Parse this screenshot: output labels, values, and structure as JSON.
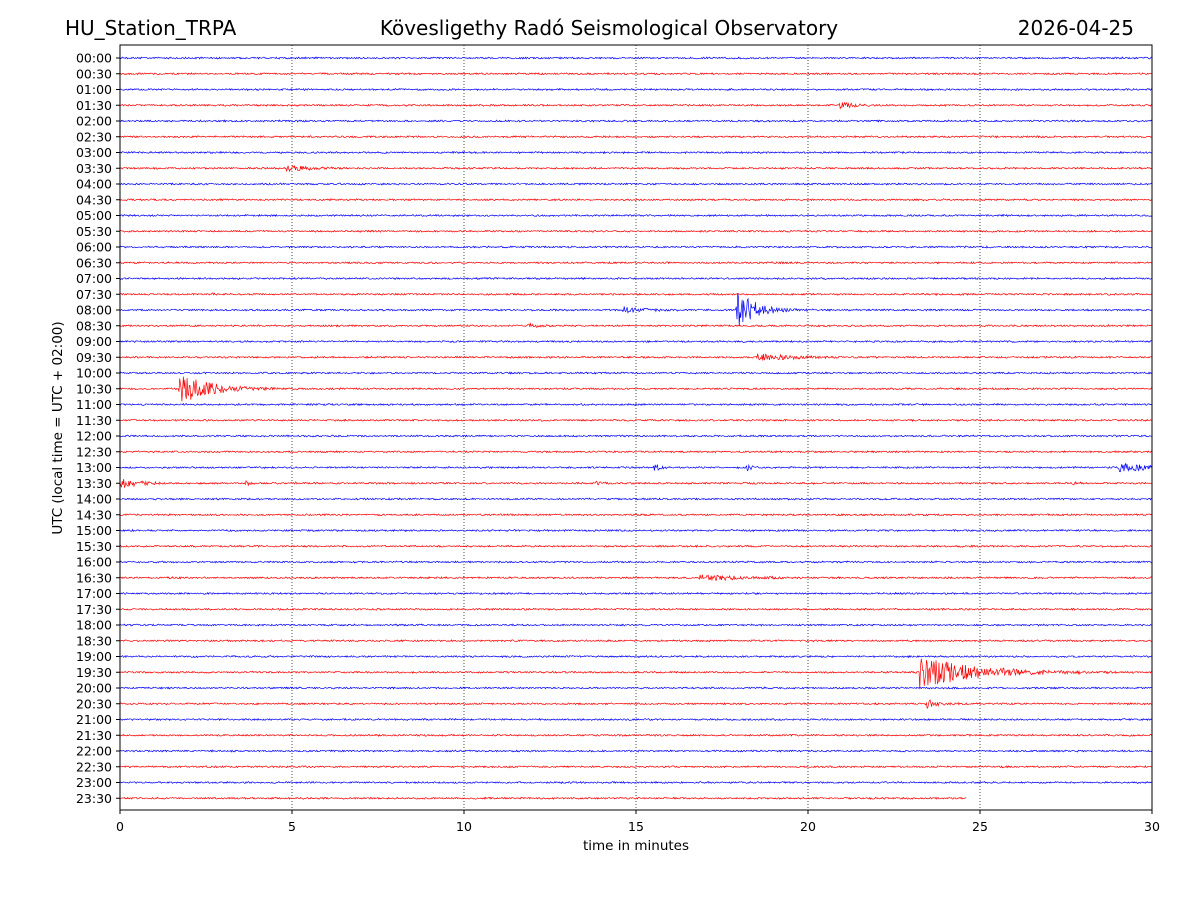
{
  "chart_data": {
    "type": "line",
    "title": {
      "left": "HU_Station_TRPA",
      "center": "Kövesligethy Radó Seismological Observatory",
      "right": "2026-04-25"
    },
    "xlabel": "time in minutes",
    "ylabel": "UTC (local time = UTC + 02:00)",
    "xlim": [
      0,
      30
    ],
    "x_ticks": [
      0,
      5,
      10,
      15,
      20,
      25,
      30
    ],
    "x_grid": true,
    "grid_style": "dotted",
    "colors": {
      "even_row": "#0000ff",
      "odd_row": "#ff0000",
      "grid": "#000000",
      "axes": "#000000"
    },
    "rows": [
      "00:00",
      "00:30",
      "01:00",
      "01:30",
      "02:00",
      "02:30",
      "03:00",
      "03:30",
      "04:00",
      "04:30",
      "05:00",
      "05:30",
      "06:00",
      "06:30",
      "07:00",
      "07:30",
      "08:00",
      "08:30",
      "09:00",
      "09:30",
      "10:00",
      "10:30",
      "11:00",
      "11:30",
      "12:00",
      "12:30",
      "13:00",
      "13:30",
      "14:00",
      "14:30",
      "15:00",
      "15:30",
      "16:00",
      "16:30",
      "17:00",
      "17:30",
      "18:00",
      "18:30",
      "19:00",
      "19:30",
      "20:00",
      "20:30",
      "21:00",
      "21:30",
      "22:00",
      "22:30",
      "23:00",
      "23:30"
    ],
    "last_row_end_minute": 24.6,
    "noise_amplitude": 1,
    "events": [
      {
        "row": "01:30",
        "start": 20.9,
        "duration": 1.2,
        "peak": 4,
        "decay": 0.3
      },
      {
        "row": "03:30",
        "start": 4.8,
        "duration": 1.8,
        "peak": 3,
        "decay": 0.7
      },
      {
        "row": "07:30",
        "start": 2.6,
        "duration": 0.2,
        "peak": 3,
        "decay": 0.05
      },
      {
        "row": "08:00",
        "start": 14.6,
        "duration": 1.6,
        "peak": 3,
        "decay": 0.6
      },
      {
        "row": "08:00",
        "start": 17.9,
        "duration": 3.5,
        "peak": 22,
        "decay": 0.5
      },
      {
        "row": "08:30",
        "start": 11.8,
        "duration": 0.8,
        "peak": 2,
        "decay": 0.4
      },
      {
        "row": "09:30",
        "start": 18.5,
        "duration": 2.5,
        "peak": 4,
        "decay": 0.8
      },
      {
        "row": "10:30",
        "start": 1.7,
        "duration": 3.5,
        "peak": 17,
        "decay": 0.8
      },
      {
        "row": "13:00",
        "start": 15.5,
        "duration": 0.4,
        "peak": 8,
        "decay": 0.1
      },
      {
        "row": "13:00",
        "start": 18.2,
        "duration": 0.4,
        "peak": 5,
        "decay": 0.1
      },
      {
        "row": "13:00",
        "start": 29.0,
        "duration": 1.0,
        "peak": 4,
        "decay": 1.0
      },
      {
        "row": "13:30",
        "start": 0.0,
        "duration": 1.2,
        "peak": 5,
        "decay": 0.5
      },
      {
        "row": "13:30",
        "start": 3.6,
        "duration": 0.4,
        "peak": 5,
        "decay": 0.1
      },
      {
        "row": "13:30",
        "start": 5.0,
        "duration": 0.2,
        "peak": 3,
        "decay": 0.05
      },
      {
        "row": "13:30",
        "start": 13.8,
        "duration": 0.5,
        "peak": 2,
        "decay": 0.2
      },
      {
        "row": "13:30",
        "start": 27.6,
        "duration": 0.5,
        "peak": 2,
        "decay": 0.2
      },
      {
        "row": "16:30",
        "start": 16.8,
        "duration": 3.0,
        "peak": 3,
        "decay": 1.2
      },
      {
        "row": "19:30",
        "start": 23.2,
        "duration": 5.8,
        "peak": 17,
        "decay": 1.5
      },
      {
        "row": "20:30",
        "start": 23.4,
        "duration": 1.2,
        "peak": 5,
        "decay": 0.3
      }
    ]
  }
}
